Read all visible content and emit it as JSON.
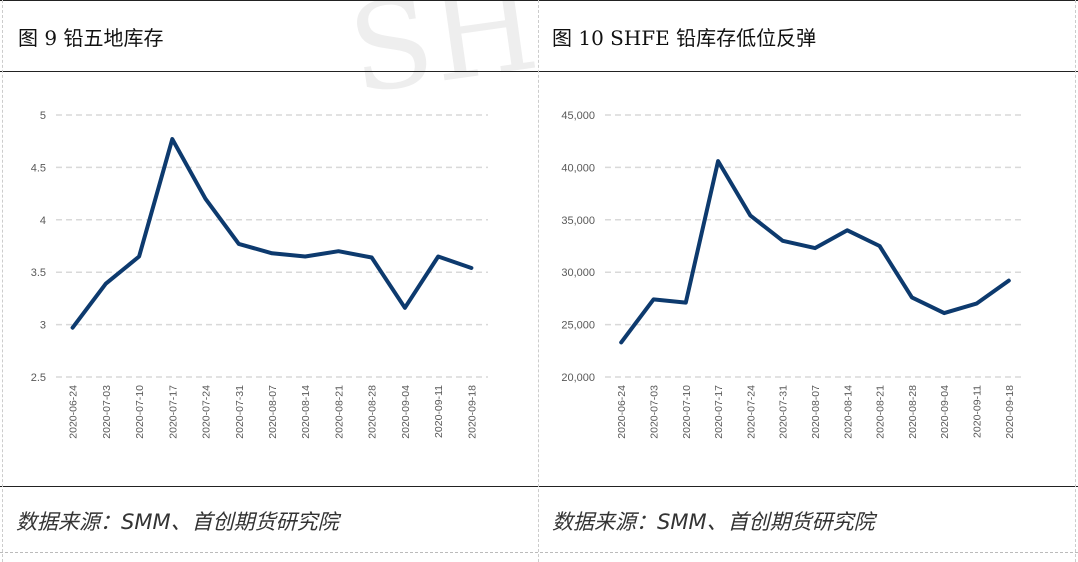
{
  "watermark": "SH",
  "figures": [
    {
      "title": "图  9  铅五地库存",
      "source": "数据来源：SMM、首创期货研究院"
    },
    {
      "title": "图  10 SHFE 铅库存低位反弹",
      "source": "数据来源：SMM、首创期货研究院"
    }
  ],
  "chart_data": [
    {
      "type": "line",
      "x": [
        "2020-06-24",
        "2020-07-03",
        "2020-07-10",
        "2020-07-17",
        "2020-07-24",
        "2020-07-31",
        "2020-08-07",
        "2020-08-14",
        "2020-08-21",
        "2020-08-28",
        "2020-09-04",
        "2020-09-11",
        "2020-09-18"
      ],
      "series": [
        {
          "values": [
            2.97,
            3.39,
            3.65,
            4.77,
            4.2,
            3.77,
            3.68,
            3.65,
            3.7,
            3.64,
            3.16,
            3.65,
            3.54
          ]
        }
      ],
      "yticks": [
        "5",
        "4.5",
        "4",
        "3.5",
        "3",
        "2.5"
      ],
      "ylim": [
        2.5,
        5
      ],
      "color": "#0d3a6e",
      "grid": true
    },
    {
      "type": "line",
      "x": [
        "2020-06-24",
        "2020-07-03",
        "2020-07-10",
        "2020-07-17",
        "2020-07-24",
        "2020-07-31",
        "2020-08-07",
        "2020-08-14",
        "2020-08-21",
        "2020-08-28",
        "2020-09-04",
        "2020-09-11",
        "2020-09-18"
      ],
      "series": [
        {
          "values": [
            23300,
            27400,
            27100,
            40600,
            35400,
            33000,
            32300,
            34000,
            32500,
            27600,
            26100,
            27000,
            29200
          ]
        }
      ],
      "yticks": [
        "45,000",
        "40,000",
        "35,000",
        "30,000",
        "25,000",
        "20,000"
      ],
      "ylim": [
        20000,
        45000
      ],
      "color": "#0d3a6e",
      "grid": true
    }
  ]
}
